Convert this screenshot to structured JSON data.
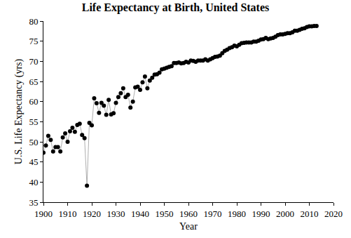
{
  "chart_data": {
    "type": "line",
    "title": "Life Expectancy at Birth, United States",
    "x_label": "Year",
    "y_label": "U.S. Life Expectancy (yrs)",
    "x": [
      1900,
      1901,
      1902,
      1903,
      1904,
      1905,
      1906,
      1907,
      1908,
      1909,
      1910,
      1911,
      1912,
      1913,
      1914,
      1915,
      1916,
      1917,
      1918,
      1919,
      1920,
      1921,
      1922,
      1923,
      1924,
      1925,
      1926,
      1927,
      1928,
      1929,
      1930,
      1931,
      1932,
      1933,
      1934,
      1935,
      1936,
      1937,
      1938,
      1939,
      1940,
      1941,
      1942,
      1943,
      1944,
      1945,
      1946,
      1947,
      1948,
      1949,
      1950,
      1951,
      1952,
      1953,
      1954,
      1955,
      1956,
      1957,
      1958,
      1959,
      1960,
      1961,
      1962,
      1963,
      1964,
      1965,
      1966,
      1967,
      1968,
      1969,
      1970,
      1971,
      1972,
      1973,
      1974,
      1975,
      1976,
      1977,
      1978,
      1979,
      1980,
      1981,
      1982,
      1983,
      1984,
      1985,
      1986,
      1987,
      1988,
      1989,
      1990,
      1991,
      1992,
      1993,
      1994,
      1995,
      1996,
      1997,
      1998,
      1999,
      2000,
      2001,
      2002,
      2003,
      2004,
      2005,
      2006,
      2007,
      2008,
      2009,
      2010,
      2011,
      2012,
      2013
    ],
    "values": [
      47.3,
      49.1,
      51.5,
      50.5,
      47.6,
      48.7,
      48.7,
      47.6,
      51.1,
      52.1,
      50.0,
      52.6,
      53.5,
      52.5,
      54.2,
      54.5,
      51.7,
      50.9,
      39.1,
      54.7,
      54.1,
      60.8,
      59.6,
      57.2,
      59.7,
      59.0,
      56.7,
      60.4,
      56.8,
      57.1,
      59.7,
      61.1,
      62.1,
      63.3,
      61.1,
      61.7,
      58.5,
      60.0,
      63.5,
      63.7,
      62.9,
      64.8,
      66.2,
      63.3,
      65.2,
      65.9,
      66.7,
      66.8,
      67.2,
      68.0,
      68.2,
      68.4,
      68.6,
      68.8,
      69.6,
      69.6,
      69.7,
      69.5,
      69.6,
      69.9,
      69.7,
      70.2,
      70.1,
      69.9,
      70.2,
      70.2,
      70.2,
      70.5,
      70.2,
      70.5,
      70.8,
      71.1,
      71.2,
      71.4,
      72.0,
      72.6,
      72.9,
      73.3,
      73.5,
      73.9,
      73.7,
      74.1,
      74.5,
      74.6,
      74.7,
      74.7,
      74.7,
      74.9,
      74.9,
      75.1,
      75.4,
      75.5,
      75.8,
      75.5,
      75.7,
      75.8,
      76.1,
      76.5,
      76.7,
      76.7,
      76.8,
      77.0,
      77.0,
      77.2,
      77.6,
      77.6,
      77.8,
      78.1,
      78.2,
      78.5,
      78.7,
      78.7,
      78.8,
      78.8
    ],
    "color": "#000000",
    "marker": "circle",
    "line_style": "solid",
    "xlim": [
      1900,
      2020
    ],
    "xticks": [
      1900,
      1910,
      1920,
      1930,
      1940,
      1950,
      1960,
      1970,
      1980,
      1990,
      2000,
      2010,
      2020
    ],
    "ylim": [
      35,
      80
    ],
    "yticks": [
      35,
      40,
      45,
      50,
      55,
      60,
      65,
      70,
      75,
      80
    ],
    "grid": false
  }
}
